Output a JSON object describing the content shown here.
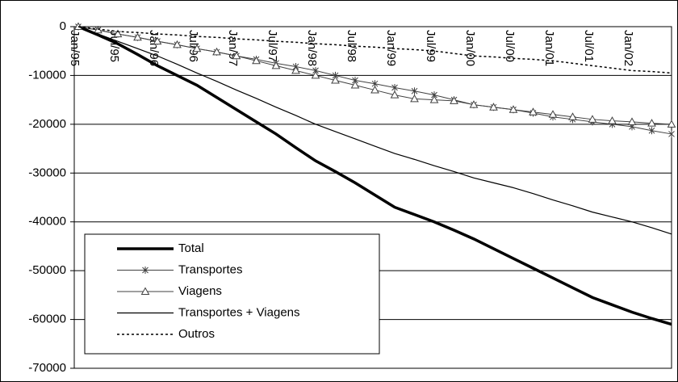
{
  "chart_data": {
    "type": "line",
    "categories": [
      "Jan/95",
      null,
      "Jul/95",
      null,
      "Jan/96",
      null,
      "Jul/96",
      null,
      "Jan/97",
      null,
      "Jul/97",
      null,
      "Jan/98",
      null,
      "Jul/98",
      null,
      "Jan/99",
      null,
      "Jul/99",
      null,
      "Jan/00",
      null,
      "Jul/00",
      null,
      "Jan/01",
      null,
      "Jul/01",
      null,
      "Jan/02",
      null,
      null
    ],
    "series": [
      {
        "name": "Total",
        "color": "#000000",
        "width": 3.5,
        "values": [
          0,
          -1700,
          -3500,
          -5700,
          -8000,
          -10000,
          -12000,
          -14500,
          -17000,
          -19500,
          -22000,
          -24800,
          -27500,
          -29700,
          -32000,
          -34500,
          -37000,
          -38500,
          -40000,
          -41700,
          -43500,
          -45500,
          -47500,
          -49500,
          -51500,
          -53500,
          -55500,
          -57000,
          -58500,
          -59800,
          -61000
        ]
      },
      {
        "name": "Transportes",
        "color": "#404040",
        "width": 1,
        "marker": "star",
        "values": [
          0,
          -700,
          -1500,
          -2200,
          -3000,
          -3700,
          -4500,
          -5200,
          -6000,
          -6700,
          -7500,
          -8200,
          -9000,
          -10000,
          -11000,
          -11700,
          -12500,
          -13200,
          -14000,
          -15000,
          -16000,
          -16500,
          -17000,
          -17700,
          -18500,
          -19000,
          -19500,
          -20000,
          -20500,
          -21300,
          -22000
        ]
      },
      {
        "name": "Viagens",
        "color": "#404040",
        "width": 1,
        "marker": "triangle",
        "values": [
          0,
          -700,
          -1500,
          -2200,
          -3000,
          -3700,
          -4500,
          -5200,
          -6000,
          -7000,
          -8000,
          -9000,
          -10000,
          -11000,
          -12000,
          -13000,
          -14000,
          -14800,
          -15000,
          -15200,
          -16000,
          -16500,
          -17000,
          -17500,
          -18000,
          -18500,
          -19000,
          -19300,
          -19500,
          -19800,
          -20000
        ]
      },
      {
        "name": "Transportes + Viagens",
        "color": "#000000",
        "width": 1.2,
        "values": [
          0,
          -1500,
          -3000,
          -4500,
          -6000,
          -7700,
          -9500,
          -11200,
          -13000,
          -14700,
          -16500,
          -18200,
          -20000,
          -21500,
          -23000,
          -24500,
          -26000,
          -27200,
          -28500,
          -29700,
          -31000,
          -32000,
          -33000,
          -34200,
          -35500,
          -36700,
          -38000,
          -39000,
          -40000,
          -41200,
          -42500
        ]
      },
      {
        "name": "Outros",
        "color": "#000000",
        "width": 1.5,
        "dash": true,
        "values": [
          0,
          -500,
          -1000,
          -1200,
          -1500,
          -1700,
          -2000,
          -2200,
          -2500,
          -2700,
          -3000,
          -3200,
          -3500,
          -3700,
          -4000,
          -4200,
          -4500,
          -4700,
          -5000,
          -5500,
          -6000,
          -6200,
          -6500,
          -6700,
          -7000,
          -7500,
          -8000,
          -8500,
          -9000,
          -9200,
          -9500
        ]
      }
    ],
    "ylim": [
      -70000,
      0
    ],
    "yticks": [
      0,
      -10000,
      -20000,
      -30000,
      -40000,
      -50000,
      -60000,
      -70000
    ],
    "grid": true,
    "legend": "bottom-left"
  }
}
